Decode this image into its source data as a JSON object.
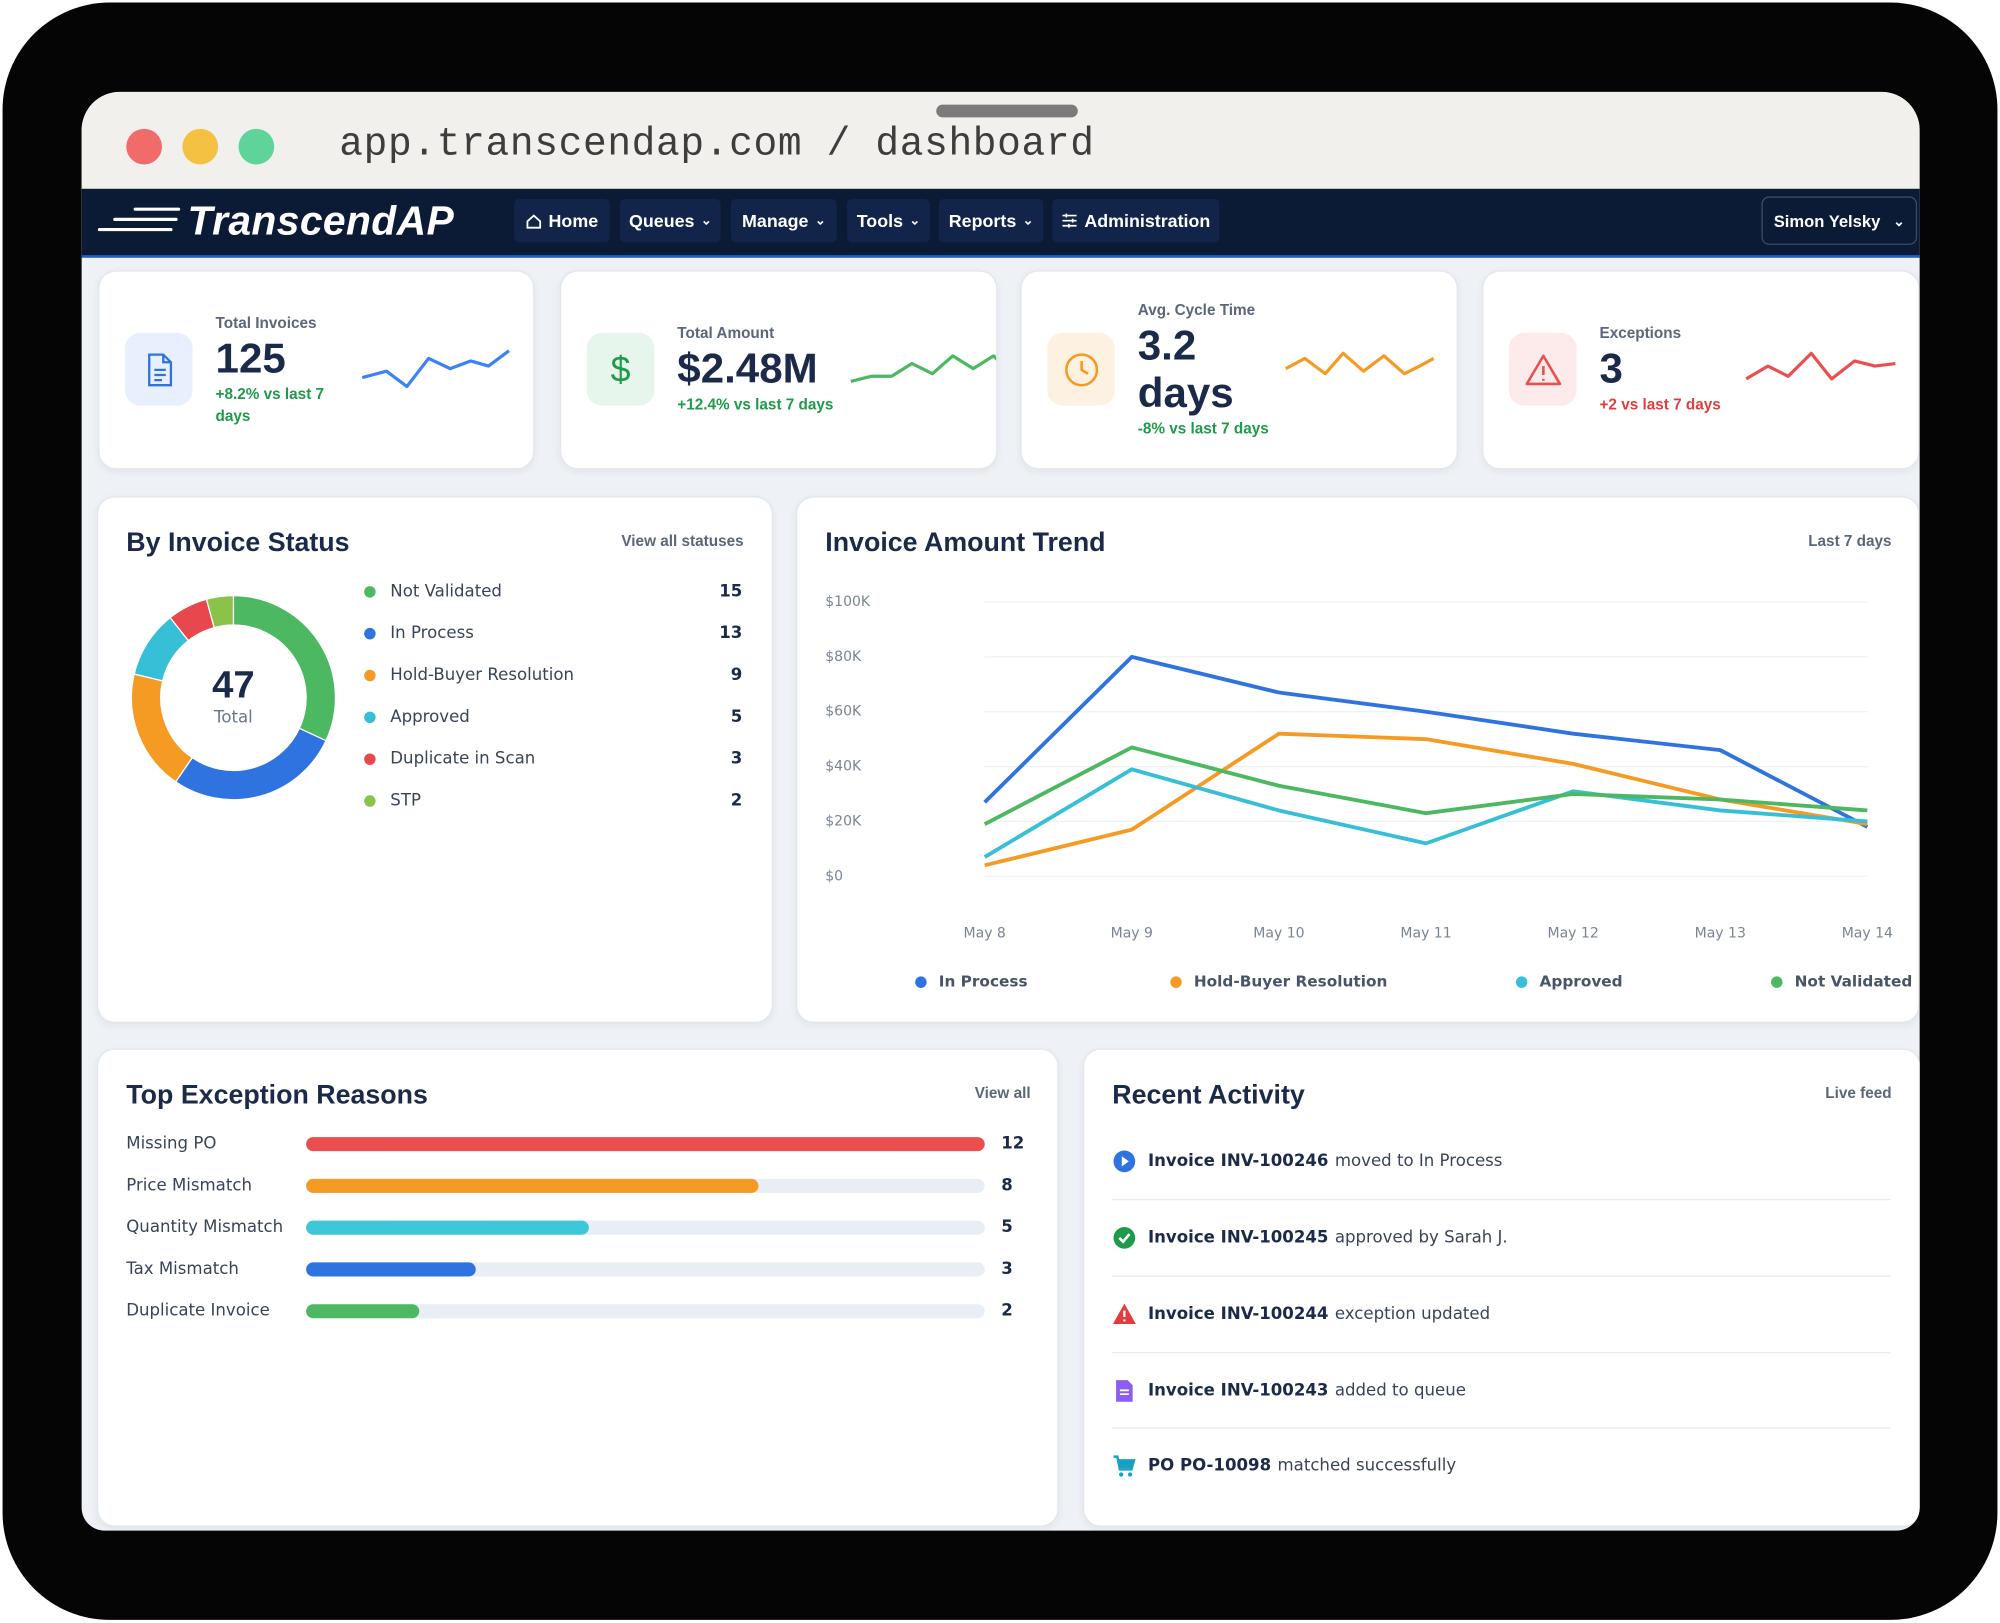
{
  "browser": {
    "url": "app.transcendap.com / dashboard"
  },
  "nav": {
    "brand": "TranscendAP",
    "items": [
      "Home",
      "Queues",
      "Manage",
      "Tools",
      "Reports",
      "Administration"
    ],
    "user": "Simon Yelsky"
  },
  "kpis": [
    {
      "label": "Total Invoices",
      "value": "125",
      "change": "+8.2% vs last 7 days"
    },
    {
      "label": "Total Amount",
      "value": "$2.48M",
      "change": "+12.4% vs last 7 days"
    },
    {
      "label": "Avg. Cycle Time",
      "value": "3.2 days",
      "change": "-8% vs last 7 days"
    },
    {
      "label": "Exceptions",
      "value": "3",
      "change": "+2 vs last 7 days"
    }
  ],
  "status_chart": {
    "type": "donut",
    "title": "By Invoice Status",
    "link": "View all statuses",
    "center_value": "47",
    "center_label": "Total",
    "categories": [
      "Not Validated",
      "In Process",
      "Hold-Buyer Resolution",
      "Approved",
      "Duplicate in Scan",
      "STP"
    ],
    "values": [
      15,
      13,
      9,
      5,
      3,
      2
    ],
    "colors": [
      "#4cb861",
      "#2f73e0",
      "#f59a23",
      "#36bfd6",
      "#e8474d",
      "#8bc34a"
    ]
  },
  "trend_chart": {
    "type": "line",
    "title": "Invoice Amount Trend",
    "subtitle": "Last 7 days",
    "categories": [
      "May 8",
      "May 9",
      "May 10",
      "May 11",
      "May 12",
      "May 13",
      "May 14"
    ],
    "ylim": [
      0,
      100000
    ],
    "yticks": [
      {
        "value": 0,
        "label": "$0"
      },
      {
        "value": 20000,
        "label": "$20K"
      },
      {
        "value": 40000,
        "label": "$40K"
      },
      {
        "value": 60000,
        "label": "$60K"
      },
      {
        "value": 80000,
        "label": "$80K"
      },
      {
        "value": 100000,
        "label": "$100K"
      }
    ],
    "grid": true,
    "series": [
      {
        "name": "In Process",
        "color": "#2f73e0",
        "values": [
          27000,
          80000,
          67000,
          60000,
          52000,
          46000,
          18000
        ]
      },
      {
        "name": "Hold-Buyer Resolution",
        "color": "#f59a23",
        "values": [
          4000,
          17000,
          52000,
          50000,
          41000,
          28000,
          19000
        ]
      },
      {
        "name": "Approved",
        "color": "#36bfd6",
        "values": [
          7000,
          39000,
          24000,
          12000,
          31000,
          24000,
          20000
        ]
      },
      {
        "name": "Not Validated",
        "color": "#4cb861",
        "values": [
          19000,
          47000,
          33000,
          23000,
          30000,
          28000,
          24000
        ]
      }
    ]
  },
  "exceptions_chart": {
    "type": "bar",
    "orientation": "horizontal",
    "title": "Top Exception Reasons",
    "link": "View all",
    "categories": [
      "Missing PO",
      "Price Mismatch",
      "Quantity Mismatch",
      "Tax Mismatch",
      "Duplicate Invoice"
    ],
    "values": [
      12,
      8,
      5,
      3,
      2
    ],
    "colors": [
      "#ea4e4e",
      "#f59a23",
      "#3ec7d8",
      "#2f73e0",
      "#4cb861"
    ],
    "xlim": [
      0,
      12
    ]
  },
  "activity": {
    "title": "Recent Activity",
    "subtitle": "Live feed",
    "items": [
      {
        "subject": "Invoice INV-100246",
        "text": "moved to In Process"
      },
      {
        "subject": "Invoice INV-100245",
        "text": "approved by Sarah J."
      },
      {
        "subject": "Invoice INV-100244",
        "text": "exception updated"
      },
      {
        "subject": "Invoice INV-100243",
        "text": "added to queue"
      },
      {
        "subject": "PO PO-10098",
        "text": "matched successfully"
      }
    ]
  }
}
